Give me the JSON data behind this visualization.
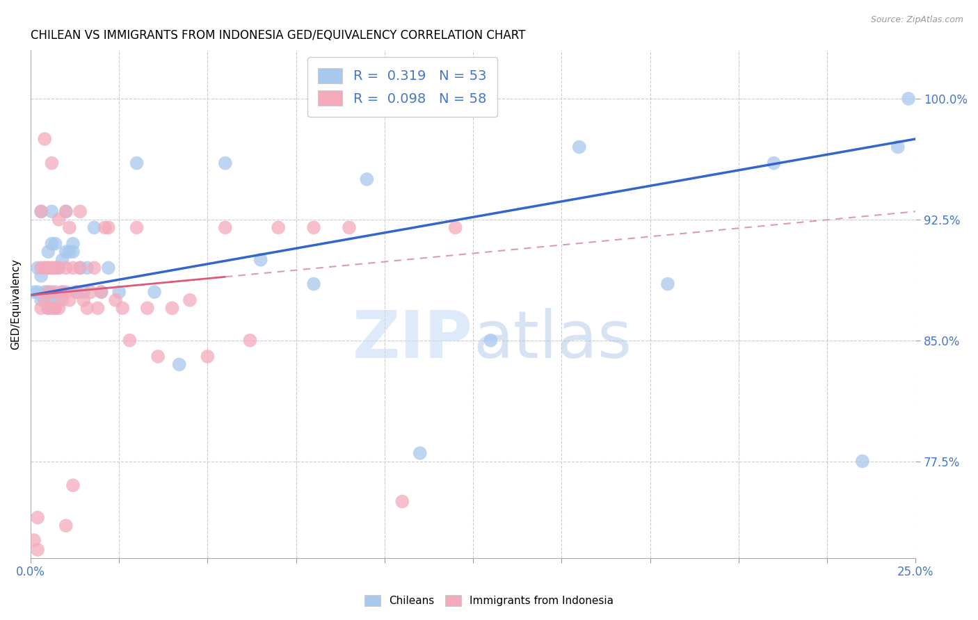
{
  "title": "CHILEAN VS IMMIGRANTS FROM INDONESIA GED/EQUIVALENCY CORRELATION CHART",
  "source": "Source: ZipAtlas.com",
  "ylabel": "GED/Equivalency",
  "ytick_labels": [
    "100.0%",
    "92.5%",
    "85.0%",
    "77.5%"
  ],
  "ytick_values": [
    1.0,
    0.925,
    0.85,
    0.775
  ],
  "xlim": [
    0.0,
    0.25
  ],
  "ylim": [
    0.715,
    1.03
  ],
  "blue_color": "#a8c8ee",
  "pink_color": "#f4aabb",
  "trend_blue": "#3366cc",
  "trend_pink": "#e05878",
  "trend_pink_dash": "#e09aaa",
  "text_blue": "#4477cc",
  "watermark_zip": "ZIP",
  "watermark_atlas": "atlas",
  "chileans_x": [
    0.001,
    0.002,
    0.002,
    0.003,
    0.003,
    0.003,
    0.004,
    0.004,
    0.004,
    0.005,
    0.005,
    0.005,
    0.005,
    0.006,
    0.006,
    0.006,
    0.006,
    0.006,
    0.007,
    0.007,
    0.007,
    0.008,
    0.008,
    0.009,
    0.009,
    0.01,
    0.01,
    0.011,
    0.012,
    0.012,
    0.013,
    0.014,
    0.015,
    0.016,
    0.018,
    0.02,
    0.022,
    0.025,
    0.03,
    0.035,
    0.042,
    0.055,
    0.065,
    0.08,
    0.095,
    0.11,
    0.13,
    0.155,
    0.18,
    0.21,
    0.235,
    0.245,
    0.248
  ],
  "chileans_y": [
    0.88,
    0.88,
    0.895,
    0.875,
    0.89,
    0.93,
    0.875,
    0.88,
    0.895,
    0.87,
    0.88,
    0.895,
    0.905,
    0.875,
    0.88,
    0.895,
    0.91,
    0.93,
    0.895,
    0.87,
    0.91,
    0.875,
    0.895,
    0.88,
    0.9,
    0.905,
    0.93,
    0.905,
    0.91,
    0.905,
    0.88,
    0.895,
    0.88,
    0.895,
    0.92,
    0.88,
    0.895,
    0.88,
    0.96,
    0.88,
    0.835,
    0.96,
    0.9,
    0.885,
    0.95,
    0.78,
    0.85,
    0.97,
    0.885,
    0.96,
    0.775,
    0.97,
    1.0
  ],
  "indonesia_x": [
    0.001,
    0.002,
    0.002,
    0.003,
    0.003,
    0.003,
    0.004,
    0.004,
    0.004,
    0.005,
    0.005,
    0.005,
    0.006,
    0.006,
    0.006,
    0.007,
    0.007,
    0.007,
    0.008,
    0.008,
    0.008,
    0.009,
    0.009,
    0.01,
    0.01,
    0.01,
    0.011,
    0.011,
    0.012,
    0.013,
    0.014,
    0.014,
    0.015,
    0.016,
    0.017,
    0.018,
    0.019,
    0.02,
    0.021,
    0.022,
    0.024,
    0.026,
    0.028,
    0.03,
    0.033,
    0.036,
    0.04,
    0.045,
    0.05,
    0.055,
    0.062,
    0.07,
    0.08,
    0.09,
    0.105,
    0.12,
    0.01,
    0.012
  ],
  "indonesia_y": [
    0.726,
    0.72,
    0.74,
    0.87,
    0.895,
    0.93,
    0.875,
    0.895,
    0.975,
    0.87,
    0.88,
    0.895,
    0.87,
    0.895,
    0.96,
    0.87,
    0.88,
    0.895,
    0.87,
    0.895,
    0.925,
    0.875,
    0.88,
    0.88,
    0.895,
    0.93,
    0.875,
    0.92,
    0.895,
    0.88,
    0.895,
    0.93,
    0.875,
    0.87,
    0.88,
    0.895,
    0.87,
    0.88,
    0.92,
    0.92,
    0.875,
    0.87,
    0.85,
    0.92,
    0.87,
    0.84,
    0.87,
    0.875,
    0.84,
    0.92,
    0.85,
    0.92,
    0.92,
    0.92,
    0.75,
    0.92,
    0.735,
    0.76
  ]
}
